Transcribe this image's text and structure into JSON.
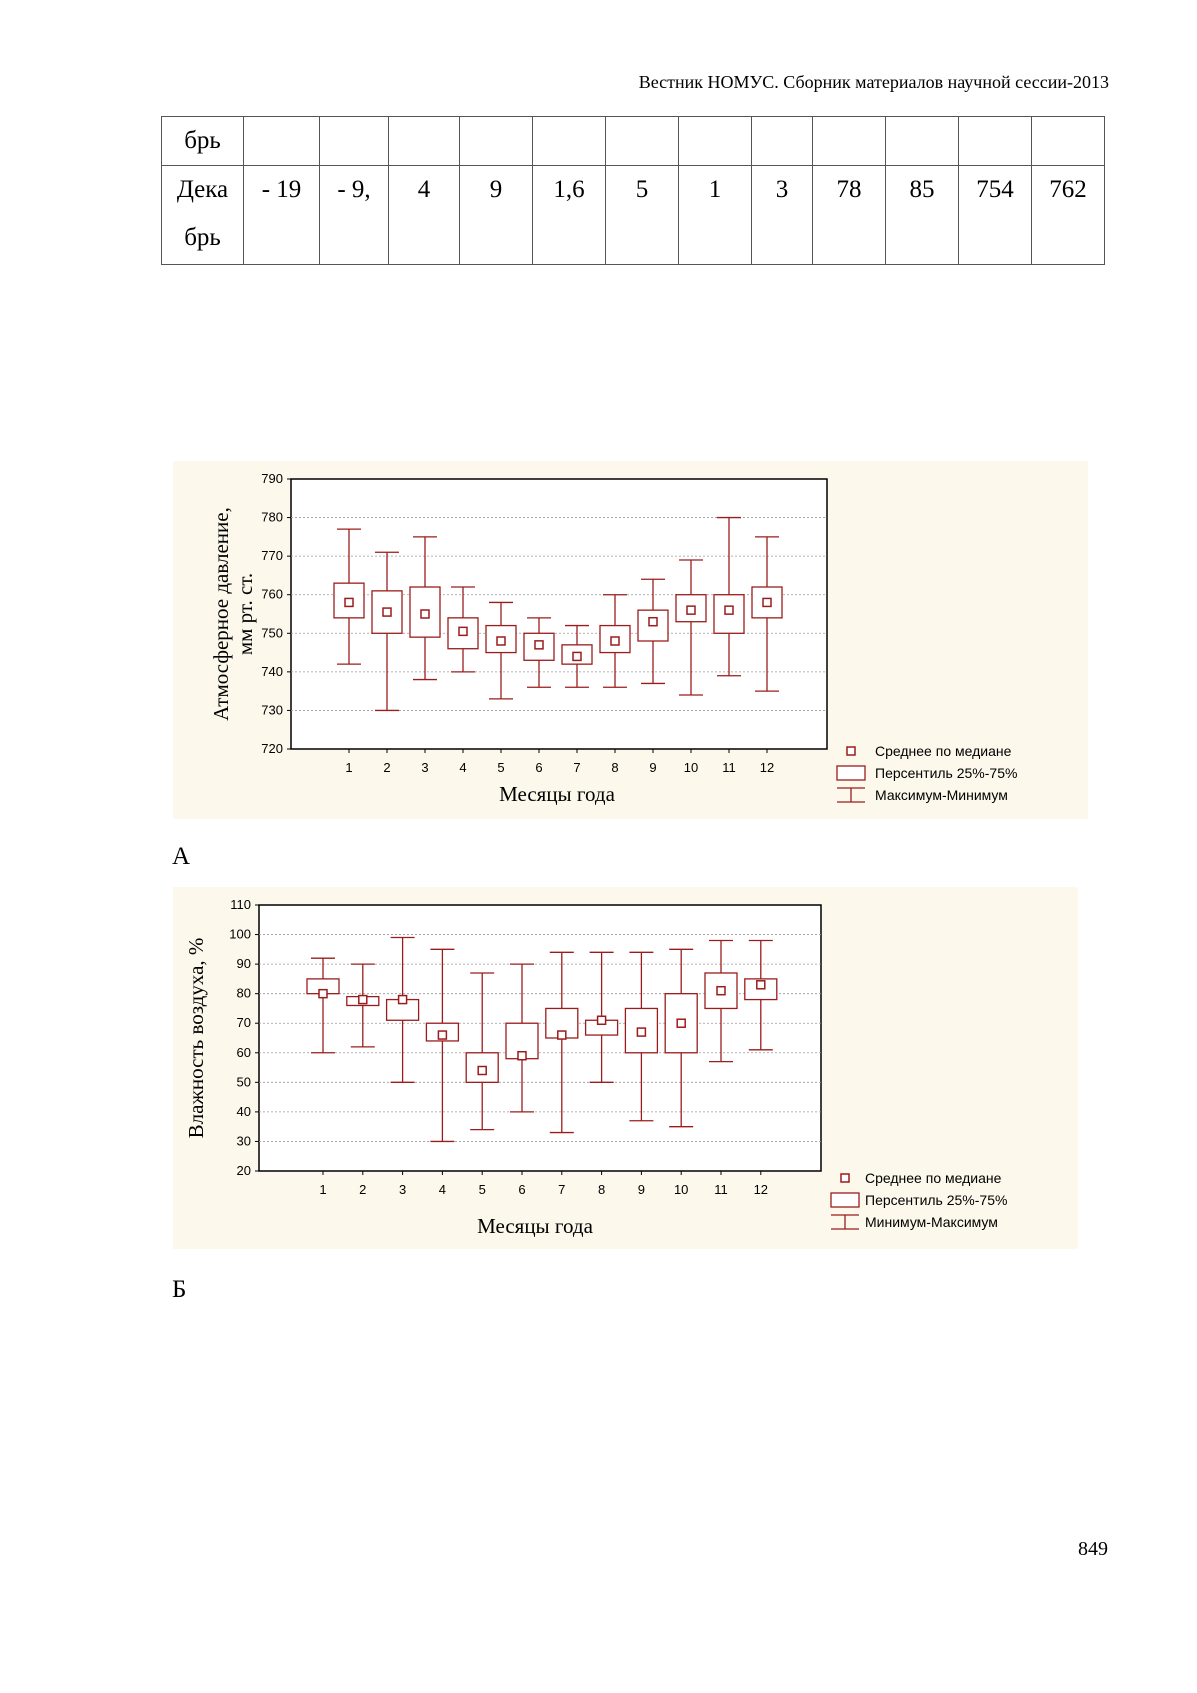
{
  "header": "Вестник НОМУС. Сборник материалов научной сессии-2013",
  "table": {
    "rows": [
      [
        "брь",
        "",
        "",
        "",
        "",
        "",
        "",
        "",
        "",
        "",
        "",
        "",
        ""
      ],
      [
        "Дека брь",
        "- 19",
        "- 9,",
        "4",
        "9",
        "1,6",
        "5",
        "1",
        "3",
        "78",
        "85",
        "754",
        "762"
      ]
    ]
  },
  "charts": [
    {
      "label": "А",
      "chart_data": {
        "type": "box",
        "xlabel": "Месяцы года",
        "ylabel_line1": "Атмосферное давление,",
        "ylabel_line2": "мм рт. ст.",
        "ylim": [
          720,
          790
        ],
        "yticks": [
          720,
          730,
          740,
          750,
          760,
          770,
          780,
          790
        ],
        "categories": [
          "1",
          "2",
          "3",
          "4",
          "5",
          "6",
          "7",
          "8",
          "9",
          "10",
          "11",
          "12"
        ],
        "median": [
          758,
          755.5,
          755,
          750.5,
          748,
          747,
          744,
          748,
          753,
          756,
          756,
          758
        ],
        "q1": [
          754,
          750,
          749,
          746,
          745,
          743,
          742,
          745,
          748,
          753,
          750,
          754
        ],
        "q3": [
          763,
          761,
          762,
          754,
          752,
          750,
          747,
          752,
          756,
          760,
          760,
          762
        ],
        "min": [
          742,
          730,
          738,
          740,
          733,
          736,
          736,
          736,
          737,
          734,
          739,
          735
        ],
        "max": [
          777,
          771,
          775,
          762,
          758,
          754,
          752,
          760,
          764,
          769,
          780,
          775
        ],
        "grid": true,
        "legend": [
          "Среднее по медиане",
          "Персентиль 25%-75%",
          "Максимум-Минимум"
        ],
        "legend_position": "bottom-right",
        "color": "#9b1c1c"
      }
    },
    {
      "label": "Б",
      "chart_data": {
        "type": "box",
        "xlabel": "Месяцы года",
        "ylabel_line1": "Влажность воздуха, %",
        "ylabel_line2": "",
        "ylim": [
          20,
          110
        ],
        "yticks": [
          20,
          30,
          40,
          50,
          60,
          70,
          80,
          90,
          100,
          110
        ],
        "categories": [
          "1",
          "2",
          "3",
          "4",
          "5",
          "6",
          "7",
          "8",
          "9",
          "10",
          "11",
          "12"
        ],
        "median": [
          80,
          78,
          78,
          66,
          54,
          59,
          66,
          71,
          67,
          70,
          81,
          83
        ],
        "q1": [
          80,
          76,
          71,
          64,
          50,
          58,
          65,
          66,
          60,
          60,
          75,
          78
        ],
        "q3": [
          85,
          79,
          78,
          70,
          60,
          70,
          75,
          71,
          75,
          80,
          87,
          85
        ],
        "min": [
          60,
          62,
          50,
          30,
          34,
          40,
          33,
          50,
          37,
          35,
          57,
          61
        ],
        "max": [
          92,
          90,
          99,
          95,
          87,
          90,
          94,
          94,
          94,
          95,
          98,
          98
        ],
        "grid": true,
        "legend": [
          "Среднее по медиане",
          "Персентиль 25%-75%",
          "Минимум-Максимум"
        ],
        "legend_position": "bottom-right",
        "color": "#9b1c1c"
      }
    }
  ],
  "page_number": "849"
}
